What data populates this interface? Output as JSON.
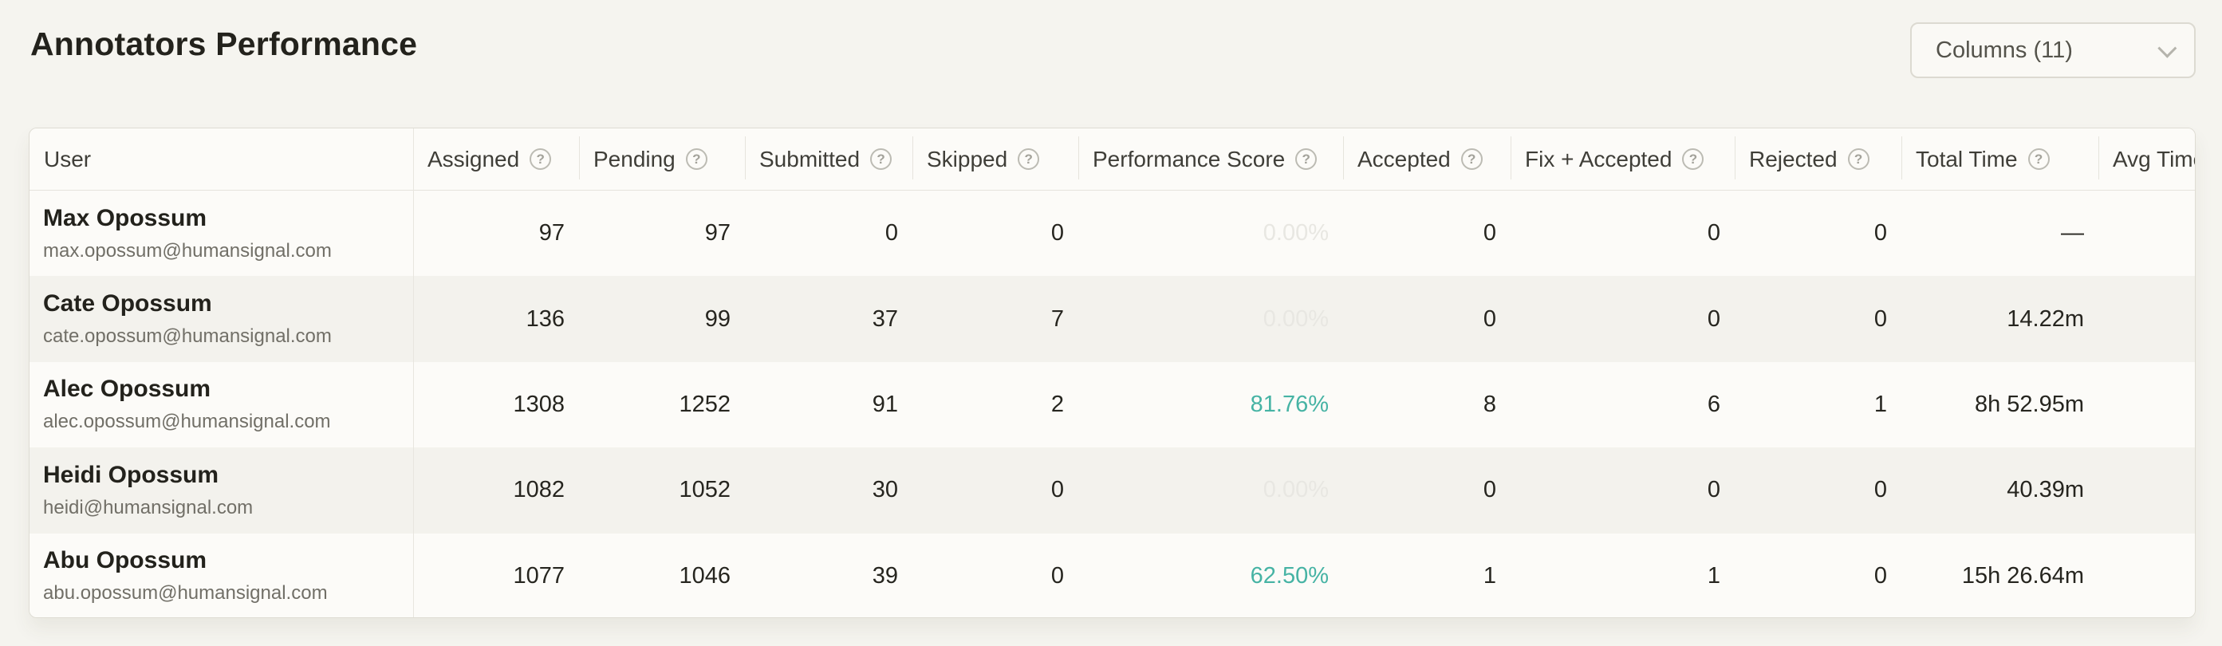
{
  "page": {
    "title": "Annotators Performance"
  },
  "toolbar": {
    "columns_button": {
      "label": "Columns (11)",
      "icon": "chevron-down"
    }
  },
  "colors": {
    "accent_teal": "#46b3a4",
    "score_muted": "#e8e7e2",
    "page_background": "#f5f4ef",
    "row_zebra": "#f3f2ed"
  },
  "table": {
    "columns": [
      {
        "key": "user",
        "label": "User",
        "has_help": false
      },
      {
        "key": "assigned",
        "label": "Assigned",
        "has_help": true
      },
      {
        "key": "pending",
        "label": "Pending",
        "has_help": true
      },
      {
        "key": "submitted",
        "label": "Submitted",
        "has_help": true
      },
      {
        "key": "skipped",
        "label": "Skipped",
        "has_help": true
      },
      {
        "key": "score",
        "label": "Performance Score",
        "has_help": true
      },
      {
        "key": "accepted",
        "label": "Accepted",
        "has_help": true
      },
      {
        "key": "fix_accepted",
        "label": "Fix + Accepted",
        "has_help": true
      },
      {
        "key": "rejected",
        "label": "Rejected",
        "has_help": true
      },
      {
        "key": "total_time",
        "label": "Total Time",
        "has_help": true
      },
      {
        "key": "avg_time",
        "label": "Avg Time",
        "has_help": false
      }
    ],
    "rows": [
      {
        "name": "Max Opossum",
        "email": "max.opossum@humansignal.com",
        "assigned": "97",
        "pending": "97",
        "submitted": "0",
        "skipped": "0",
        "score": "0.00%",
        "score_highlighted": false,
        "accepted": "0",
        "fix_accepted": "0",
        "rejected": "0",
        "total_time": "—",
        "avg_time": ""
      },
      {
        "name": "Cate Opossum",
        "email": "cate.opossum@humansignal.com",
        "assigned": "136",
        "pending": "99",
        "submitted": "37",
        "skipped": "7",
        "score": "0.00%",
        "score_highlighted": false,
        "accepted": "0",
        "fix_accepted": "0",
        "rejected": "0",
        "total_time": "14.22m",
        "avg_time": ""
      },
      {
        "name": "Alec Opossum",
        "email": "alec.opossum@humansignal.com",
        "assigned": "1308",
        "pending": "1252",
        "submitted": "91",
        "skipped": "2",
        "score": "81.76%",
        "score_highlighted": true,
        "accepted": "8",
        "fix_accepted": "6",
        "rejected": "1",
        "total_time": "8h 52.95m",
        "avg_time": ""
      },
      {
        "name": "Heidi Opossum",
        "email": "heidi@humansignal.com",
        "assigned": "1082",
        "pending": "1052",
        "submitted": "30",
        "skipped": "0",
        "score": "0.00%",
        "score_highlighted": false,
        "accepted": "0",
        "fix_accepted": "0",
        "rejected": "0",
        "total_time": "40.39m",
        "avg_time": ""
      },
      {
        "name": "Abu Opossum",
        "email": "abu.opossum@humansignal.com",
        "assigned": "1077",
        "pending": "1046",
        "submitted": "39",
        "skipped": "0",
        "score": "62.50%",
        "score_highlighted": true,
        "accepted": "1",
        "fix_accepted": "1",
        "rejected": "0",
        "total_time": "15h 26.64m",
        "avg_time": ""
      }
    ]
  }
}
